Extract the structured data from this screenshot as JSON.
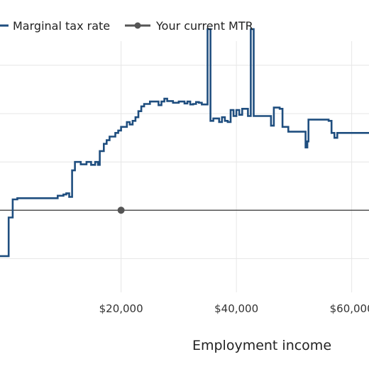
{
  "chart_data": {
    "type": "line",
    "xlabel": "Employment income",
    "ylabel": "",
    "x_tick_labels": [
      "$20,000",
      "$40,000",
      "$60,000"
    ],
    "x_ticks": [
      20000,
      40000,
      60000
    ],
    "xlim": [
      -1000,
      63000
    ],
    "ylim": [
      -0.34,
      0.7
    ],
    "y_gridlines": [
      -0.2,
      0.0,
      0.2,
      0.4,
      0.6
    ],
    "grid": true,
    "legend": "top-left",
    "series": [
      {
        "name": "Marginal tax rate",
        "color": "#1f4e7f",
        "points": [
          [
            -1000,
            -0.19
          ],
          [
            500,
            -0.19
          ],
          [
            500,
            -0.03
          ],
          [
            1200,
            -0.03
          ],
          [
            1200,
            0.045
          ],
          [
            2000,
            0.045
          ],
          [
            2000,
            0.05
          ],
          [
            9000,
            0.05
          ],
          [
            9000,
            0.06
          ],
          [
            10000,
            0.06
          ],
          [
            10000,
            0.065
          ],
          [
            10500,
            0.065
          ],
          [
            10500,
            0.07
          ],
          [
            11000,
            0.07
          ],
          [
            11000,
            0.055
          ],
          [
            11500,
            0.055
          ],
          [
            11500,
            0.165
          ],
          [
            12000,
            0.165
          ],
          [
            12000,
            0.2
          ],
          [
            13000,
            0.2
          ],
          [
            13000,
            0.19
          ],
          [
            14000,
            0.19
          ],
          [
            14000,
            0.2
          ],
          [
            14800,
            0.2
          ],
          [
            14800,
            0.188
          ],
          [
            15500,
            0.188
          ],
          [
            15500,
            0.2
          ],
          [
            16000,
            0.2
          ],
          [
            16000,
            0.188
          ],
          [
            16300,
            0.188
          ],
          [
            16300,
            0.245
          ],
          [
            17000,
            0.245
          ],
          [
            17000,
            0.275
          ],
          [
            17500,
            0.275
          ],
          [
            17500,
            0.29
          ],
          [
            18000,
            0.29
          ],
          [
            18000,
            0.305
          ],
          [
            19000,
            0.305
          ],
          [
            19000,
            0.32
          ],
          [
            19500,
            0.32
          ],
          [
            19500,
            0.33
          ],
          [
            20000,
            0.33
          ],
          [
            20000,
            0.345
          ],
          [
            21000,
            0.345
          ],
          [
            21000,
            0.365
          ],
          [
            21500,
            0.365
          ],
          [
            21500,
            0.355
          ],
          [
            22000,
            0.355
          ],
          [
            22000,
            0.37
          ],
          [
            22500,
            0.37
          ],
          [
            22500,
            0.385
          ],
          [
            23000,
            0.385
          ],
          [
            23000,
            0.41
          ],
          [
            23500,
            0.41
          ],
          [
            23500,
            0.43
          ],
          [
            24000,
            0.43
          ],
          [
            24000,
            0.44
          ],
          [
            25000,
            0.44
          ],
          [
            25000,
            0.45
          ],
          [
            26500,
            0.45
          ],
          [
            26500,
            0.435
          ],
          [
            27000,
            0.435
          ],
          [
            27000,
            0.45
          ],
          [
            27500,
            0.45
          ],
          [
            27500,
            0.462
          ],
          [
            28000,
            0.462
          ],
          [
            28000,
            0.452
          ],
          [
            29000,
            0.452
          ],
          [
            29000,
            0.445
          ],
          [
            30000,
            0.445
          ],
          [
            30000,
            0.45
          ],
          [
            31000,
            0.45
          ],
          [
            31000,
            0.442
          ],
          [
            31500,
            0.442
          ],
          [
            31500,
            0.45
          ],
          [
            32000,
            0.45
          ],
          [
            32000,
            0.438
          ],
          [
            32500,
            0.438
          ],
          [
            32500,
            0.44
          ],
          [
            33000,
            0.44
          ],
          [
            33000,
            0.448
          ],
          [
            33500,
            0.448
          ],
          [
            33500,
            0.445
          ],
          [
            34000,
            0.445
          ],
          [
            34000,
            0.438
          ],
          [
            35000,
            0.438
          ],
          [
            35000,
            0.75
          ],
          [
            35500,
            0.75
          ],
          [
            35500,
            0.37
          ],
          [
            36000,
            0.37
          ],
          [
            36000,
            0.38
          ],
          [
            37000,
            0.38
          ],
          [
            37000,
            0.365
          ],
          [
            37500,
            0.365
          ],
          [
            37500,
            0.385
          ],
          [
            38000,
            0.385
          ],
          [
            38000,
            0.37
          ],
          [
            38500,
            0.37
          ],
          [
            38500,
            0.365
          ],
          [
            39000,
            0.365
          ],
          [
            39000,
            0.415
          ],
          [
            39500,
            0.415
          ],
          [
            39500,
            0.39
          ],
          [
            40000,
            0.39
          ],
          [
            40000,
            0.415
          ],
          [
            40500,
            0.415
          ],
          [
            40500,
            0.395
          ],
          [
            41000,
            0.395
          ],
          [
            41000,
            0.42
          ],
          [
            42000,
            0.42
          ],
          [
            42000,
            0.39
          ],
          [
            42500,
            0.39
          ],
          [
            42500,
            0.75
          ],
          [
            43000,
            0.75
          ],
          [
            43000,
            0.39
          ],
          [
            46000,
            0.39
          ],
          [
            46000,
            0.35
          ],
          [
            46500,
            0.35
          ],
          [
            46500,
            0.425
          ],
          [
            47500,
            0.425
          ],
          [
            47500,
            0.42
          ],
          [
            48000,
            0.42
          ],
          [
            48000,
            0.345
          ],
          [
            49000,
            0.345
          ],
          [
            49000,
            0.325
          ],
          [
            52000,
            0.325
          ],
          [
            52000,
            0.26
          ],
          [
            52300,
            0.26
          ],
          [
            52300,
            0.285
          ],
          [
            52500,
            0.285
          ],
          [
            52500,
            0.375
          ],
          [
            56000,
            0.375
          ],
          [
            56000,
            0.37
          ],
          [
            56500,
            0.37
          ],
          [
            56500,
            0.32
          ],
          [
            57000,
            0.32
          ],
          [
            57000,
            0.3
          ],
          [
            57500,
            0.3
          ],
          [
            57500,
            0.32
          ],
          [
            63000,
            0.32
          ]
        ]
      }
    ],
    "marker": {
      "name": "Your current MTR",
      "color": "#555555",
      "x": 20000,
      "y": 0.0
    }
  }
}
